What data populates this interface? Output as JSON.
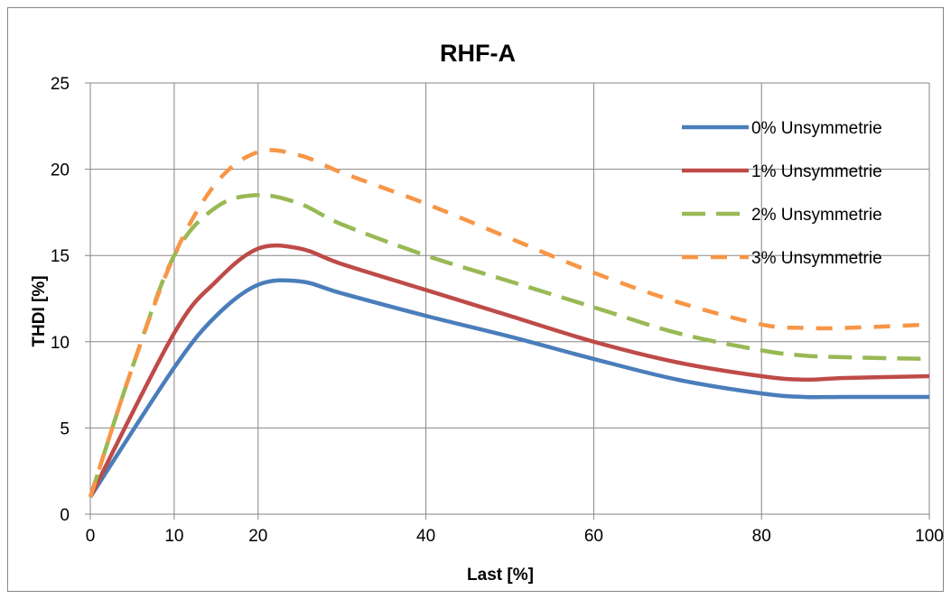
{
  "chart_data": {
    "type": "line",
    "title": "RHF-A",
    "xlabel": "Last [%]",
    "ylabel": "THDI [%]",
    "xlim": [
      0,
      100
    ],
    "ylim": [
      0,
      25
    ],
    "grid": true,
    "legend_position": "right",
    "x_tick_labels": [
      "0",
      "10",
      "20",
      "40",
      "60",
      "80",
      "100"
    ],
    "y_tick_labels": [
      "0",
      "5",
      "10",
      "15",
      "20",
      "25"
    ],
    "series": [
      {
        "name": "0% Unsymmetrie",
        "color": "#4a7ebb",
        "x": [
          0,
          10,
          15,
          20,
          25,
          30,
          40,
          50,
          60,
          70,
          80,
          85,
          90,
          100
        ],
        "y": [
          1,
          8.5,
          11.5,
          13.3,
          13.5,
          12.8,
          11.5,
          10.3,
          9,
          7.8,
          7,
          6.8,
          6.8,
          6.8
        ]
      },
      {
        "name": "1% Unsymmetrie",
        "color": "#be4b48",
        "x": [
          0,
          10,
          15,
          20,
          25,
          30,
          40,
          50,
          60,
          70,
          80,
          85,
          90,
          100
        ],
        "y": [
          1,
          10.5,
          13.5,
          15.4,
          15.4,
          14.5,
          13,
          11.5,
          10,
          8.8,
          8,
          7.8,
          7.9,
          8
        ]
      },
      {
        "name": "2% Unsymmetrie",
        "color": "#98b954",
        "x": [
          0,
          5,
          10,
          15,
          20,
          25,
          30,
          40,
          50,
          60,
          70,
          80,
          85,
          90,
          100
        ],
        "y": [
          1,
          8.5,
          15,
          17.8,
          18.5,
          18,
          16.8,
          15,
          13.5,
          12,
          10.5,
          9.5,
          9.2,
          9.1,
          9
        ]
      },
      {
        "name": "3% Unsymmetrie",
        "color": "#f79646",
        "x": [
          0,
          5,
          10,
          15,
          20,
          25,
          30,
          40,
          50,
          60,
          70,
          80,
          85,
          90,
          100
        ],
        "y": [
          1,
          8.5,
          15,
          19.2,
          21,
          20.8,
          19.8,
          18,
          16,
          14,
          12.3,
          11,
          10.8,
          10.8,
          11
        ]
      }
    ]
  }
}
